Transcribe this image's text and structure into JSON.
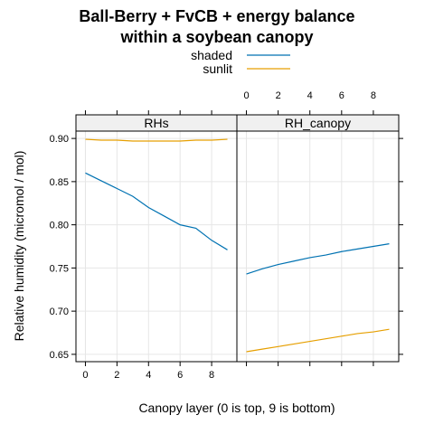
{
  "chart_data": {
    "type": "line",
    "title_lines": [
      "Ball-Berry + FvCB + energy balance",
      "within a soybean canopy"
    ],
    "xlabel": "Canopy layer (0 is top, 9 is bottom)",
    "ylabel": "Relative humidity (micromol / mol)",
    "xlim": [
      -0.6,
      9.6
    ],
    "ylim": [
      0.6415,
      0.9085
    ],
    "x_ticks": [
      0,
      2,
      4,
      6,
      8
    ],
    "y_ticks": [
      0.65,
      0.7,
      0.75,
      0.8,
      0.85,
      0.9
    ],
    "y_tick_labels": [
      "0.65",
      "0.70",
      "0.75",
      "0.80",
      "0.85",
      "0.90"
    ],
    "grid": true,
    "legend": {
      "position": "top",
      "entries": [
        {
          "name": "shaded",
          "color": "#0072B2"
        },
        {
          "name": "sunlit",
          "color": "#E69F00"
        }
      ]
    },
    "x": [
      0,
      1,
      2,
      3,
      4,
      5,
      6,
      7,
      8,
      9
    ],
    "panels": [
      {
        "strip": "RHs",
        "series": [
          {
            "name": "shaded",
            "color": "#0072B2",
            "values": [
              0.86,
              0.851,
              0.842,
              0.833,
              0.82,
              0.81,
              0.8,
              0.796,
              0.782,
              0.771
            ]
          },
          {
            "name": "sunlit",
            "color": "#E69F00",
            "values": [
              0.899,
              0.898,
              0.898,
              0.897,
              0.897,
              0.897,
              0.897,
              0.898,
              0.898,
              0.899
            ]
          }
        ]
      },
      {
        "strip": "RH_canopy",
        "series": [
          {
            "name": "shaded",
            "color": "#0072B2",
            "values": [
              0.743,
              0.749,
              0.754,
              0.758,
              0.762,
              0.765,
              0.769,
              0.772,
              0.775,
              0.778
            ]
          },
          {
            "name": "sunlit",
            "color": "#E69F00",
            "values": [
              0.653,
              0.656,
              0.659,
              0.662,
              0.665,
              0.668,
              0.671,
              0.674,
              0.676,
              0.679
            ]
          }
        ]
      }
    ]
  }
}
